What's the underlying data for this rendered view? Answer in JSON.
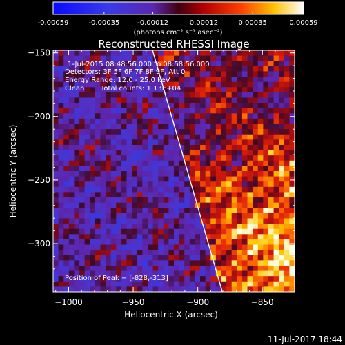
{
  "colorbar": {
    "tick_labels": [
      "-0.00059",
      "-0.00035",
      "-0.00012",
      "0.00012",
      "0.00035",
      "0.00059"
    ],
    "tick_values": [
      -0.00059,
      -0.00035,
      -0.00012,
      0.00012,
      0.00035,
      0.00059
    ],
    "range": [
      -0.00059,
      0.00059
    ],
    "units": "(photons cm⁻² s⁻¹ asec⁻²)"
  },
  "chart_data": {
    "type": "heatmap",
    "title": "Reconstructed RHESSI Image",
    "xlabel": "Heliocentric X (arcsec)",
    "ylabel": "Heliocentric Y (arcsec)",
    "xlim": [
      -1012,
      -825
    ],
    "ylim": [
      -338,
      -148
    ],
    "x_ticks": [
      -1000,
      -950,
      -900,
      -850
    ],
    "x_tick_labels": [
      "−1000",
      "−950",
      "−900",
      "−850"
    ],
    "y_ticks": [
      -300,
      -250,
      -200,
      -150
    ],
    "y_tick_labels": [
      "−300",
      "−250",
      "−200",
      "−150"
    ],
    "limb_line": [
      [
        -935,
        -148
      ],
      [
        -881,
        -338
      ]
    ],
    "peak": [
      -828,
      -313
    ],
    "colormap": "blue-purple-red-yellow-white",
    "colors": {
      "negative": "#2a48e8",
      "background": "#5a1fa0",
      "mid": "#c0101a",
      "positive": "#ffe000",
      "max": "#ffffff"
    }
  },
  "annotations": {
    "time_range": "1-Jul-2015 08:48:56.000 to 08:58:56.000",
    "detectors": "Detectors: 3F 5F 6F 7F 8F 9F, Att 0",
    "energy": "Energy Range: 12.0 - 25.0 keV",
    "clean": "Clean",
    "counts": "Total counts: 1.13E+04",
    "peak_label": "Position of Peak = [-828,-313]"
  },
  "footer": {
    "timestamp": "11-Jul-2017 18:44"
  }
}
